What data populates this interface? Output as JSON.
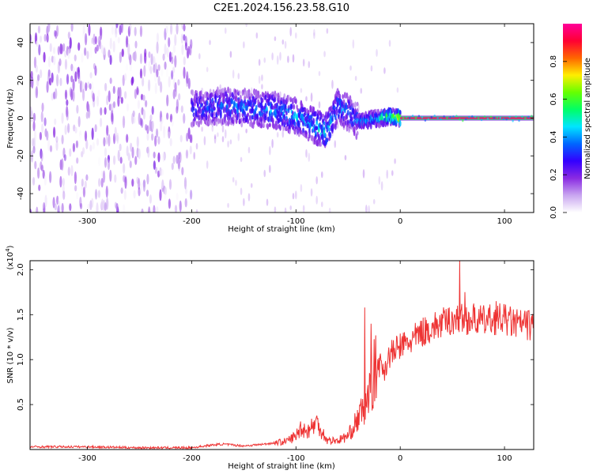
{
  "title": "C2E1.2024.156.23.58.G10",
  "colorbar": {
    "label": "Normalized spectral amplitude",
    "ticks": [
      "0.0",
      "0.2",
      "0.4",
      "0.6",
      "0.8"
    ],
    "range": [
      0,
      1
    ],
    "stops": [
      "#ffffff",
      "#c9a6f0",
      "#8a2be2",
      "#3300ff",
      "#0066ff",
      "#00e5ff",
      "#00ff66",
      "#66ff00",
      "#ffee00",
      "#ff6600",
      "#ff0033",
      "#ff0099"
    ]
  },
  "chart_data": [
    {
      "type": "heatmap",
      "xlabel": "Height of straight line (km)",
      "ylabel": "Frequency (Hz)",
      "xlim": [
        -355,
        128
      ],
      "ylim": [
        -50,
        50
      ],
      "xticks": [
        -300,
        -200,
        -100,
        0,
        100
      ],
      "yticks": [
        -40,
        -20,
        0,
        20,
        40
      ],
      "carrier_line": {
        "x_start": 0,
        "x_end": 128,
        "frequency": 0,
        "amplitude": 0.97
      },
      "ridge": {
        "x": [
          -200,
          -180,
          -160,
          -140,
          -120,
          -100,
          -90,
          -80,
          -70,
          -60,
          -50,
          -40,
          -30,
          -20,
          -10,
          0
        ],
        "center_frequency": [
          5,
          6,
          6,
          5,
          4,
          1,
          -2,
          -5,
          -7,
          6,
          3,
          -2,
          -1,
          0,
          1,
          0
        ],
        "peak_amplitude": [
          0.35,
          0.4,
          0.42,
          0.42,
          0.45,
          0.45,
          0.45,
          0.5,
          0.5,
          0.45,
          0.4,
          0.42,
          0.45,
          0.5,
          0.7,
          0.8
        ]
      },
      "noise_region": {
        "x_range": [
          -355,
          -200
        ],
        "amplitude_range": [
          0.0,
          0.2
        ]
      }
    },
    {
      "type": "line",
      "xlabel": "Height of straight line (km)",
      "ylabel": "SNR (10 * v/v)",
      "ymultiplier": "(x10^4)",
      "xlim": [
        -355,
        128
      ],
      "ylim": [
        0,
        2.1
      ],
      "xticks": [
        -300,
        -200,
        -100,
        0,
        100
      ],
      "yticks": [
        0.5,
        1.0,
        1.5,
        2.0
      ],
      "color": "#ee3333",
      "series": [
        {
          "x": [
            -355,
            -300,
            -250,
            -200,
            -180,
            -170,
            -150,
            -130,
            -110,
            -100,
            -95,
            -90,
            -80,
            -75,
            -70,
            -60,
            -50,
            -45,
            -40,
            -35,
            -30,
            -25,
            -20,
            -15,
            -10,
            -5,
            0,
            10,
            20,
            30,
            40,
            50,
            60,
            70,
            80,
            90,
            100,
            110,
            128
          ],
          "values": [
            0.03,
            0.03,
            0.02,
            0.02,
            0.05,
            0.06,
            0.04,
            0.06,
            0.09,
            0.15,
            0.25,
            0.2,
            0.3,
            0.2,
            0.1,
            0.1,
            0.15,
            0.25,
            0.35,
            0.45,
            0.6,
            0.85,
            0.95,
            0.9,
            1.05,
            1.1,
            1.15,
            1.2,
            1.3,
            1.35,
            1.4,
            1.45,
            1.45,
            1.45,
            1.43,
            1.45,
            1.45,
            1.4,
            1.38
          ]
        }
      ],
      "spikes": [
        {
          "x": -34,
          "value": 1.58
        },
        {
          "x": -28,
          "value": 1.4
        },
        {
          "x": 57,
          "value": 2.1
        },
        {
          "x": 62,
          "value": 1.75
        },
        {
          "x": 92,
          "value": 1.65
        }
      ]
    }
  ]
}
